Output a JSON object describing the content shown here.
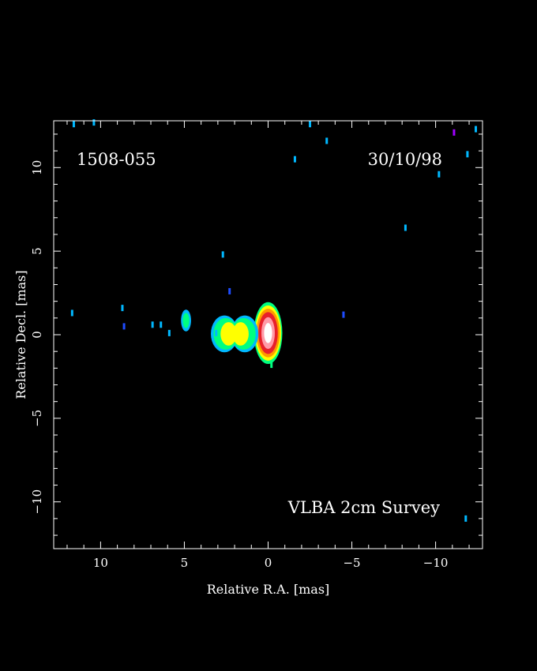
{
  "chart_data": {
    "type": "heatmap",
    "source_name": "1508-055",
    "epoch": "30/10/98",
    "survey": "VLBA 2cm Survey",
    "xlabel": "Relative R.A. [mas]",
    "ylabel": "Relative Decl. [mas]",
    "xlim": [
      12.8,
      -12.8
    ],
    "ylim": [
      -12.8,
      12.8
    ],
    "xticks": [
      {
        "value": 10,
        "label": "10"
      },
      {
        "value": 5,
        "label": "5"
      },
      {
        "value": 0,
        "label": "0"
      },
      {
        "value": -5,
        "label": "−5"
      },
      {
        "value": -10,
        "label": "−10"
      }
    ],
    "yticks": [
      {
        "value": 10,
        "label": "10"
      },
      {
        "value": 5,
        "label": "5"
      },
      {
        "value": 0,
        "label": "0"
      },
      {
        "value": -5,
        "label": "−5"
      },
      {
        "value": -10,
        "label": "−10"
      }
    ],
    "minor_tick_step": 1,
    "colors": {
      "white": "#ffffff",
      "pink": "#ff9aa8",
      "red": "#e8202a",
      "orange": "#ff9a00",
      "yellow": "#ffff00",
      "green": "#00ff80",
      "cyan": "#00b8ff",
      "blue": "#1e4cff",
      "purple": "#a000ff"
    },
    "components": [
      {
        "name": "core",
        "x": 0.0,
        "y": 0.1,
        "dx": 0.9,
        "dy": 2.0,
        "layers": [
          {
            "color": "green",
            "rx": 0.85,
            "ry": 1.85
          },
          {
            "color": "yellow",
            "rx": 0.78,
            "ry": 1.65
          },
          {
            "color": "orange",
            "rx": 0.7,
            "ry": 1.45
          },
          {
            "color": "red",
            "rx": 0.58,
            "ry": 1.25
          },
          {
            "color": "pink",
            "rx": 0.4,
            "ry": 0.95
          },
          {
            "color": "white",
            "rx": 0.24,
            "ry": 0.6
          }
        ]
      },
      {
        "name": "jet-knot-1",
        "x": 2.0,
        "y": 0.05,
        "dx": 1.3,
        "dy": 1.2,
        "layers": [
          {
            "color": "cyan",
            "rx": 1.35,
            "ry": 1.1
          },
          {
            "color": "green",
            "rx": 1.2,
            "ry": 0.95
          },
          {
            "color": "yellow",
            "rx": 0.8,
            "ry": 0.7
          }
        ]
      },
      {
        "name": "jet-knot-2",
        "x": 4.9,
        "y": 0.85,
        "dx": 0.5,
        "dy": 0.9,
        "layers": [
          {
            "color": "cyan",
            "rx": 0.3,
            "ry": 0.65
          },
          {
            "color": "green",
            "rx": 0.2,
            "ry": 0.45
          }
        ]
      }
    ],
    "specks": [
      {
        "x": 11.7,
        "y": 1.3,
        "color": "cyan"
      },
      {
        "x": 8.7,
        "y": 1.6,
        "color": "cyan"
      },
      {
        "x": 8.6,
        "y": 0.5,
        "color": "blue"
      },
      {
        "x": 6.9,
        "y": 0.6,
        "color": "cyan"
      },
      {
        "x": 6.4,
        "y": 0.6,
        "color": "cyan"
      },
      {
        "x": 5.9,
        "y": 0.1,
        "color": "cyan"
      },
      {
        "x": 3.1,
        "y": 0.1,
        "color": "cyan"
      },
      {
        "x": 2.7,
        "y": 4.8,
        "color": "cyan"
      },
      {
        "x": 2.3,
        "y": 2.6,
        "color": "blue"
      },
      {
        "x": -0.2,
        "y": -1.8,
        "color": "green"
      },
      {
        "x": -1.6,
        "y": 10.5,
        "color": "cyan"
      },
      {
        "x": -3.5,
        "y": 11.6,
        "color": "cyan"
      },
      {
        "x": -2.5,
        "y": 12.6,
        "color": "cyan"
      },
      {
        "x": -4.5,
        "y": 1.2,
        "color": "blue"
      },
      {
        "x": -8.2,
        "y": 6.4,
        "color": "cyan"
      },
      {
        "x": -10.2,
        "y": 9.6,
        "color": "cyan"
      },
      {
        "x": -11.1,
        "y": 12.1,
        "color": "purple"
      },
      {
        "x": -11.9,
        "y": 10.8,
        "color": "cyan"
      },
      {
        "x": -12.4,
        "y": 12.3,
        "color": "cyan"
      },
      {
        "x": -11.8,
        "y": -11.0,
        "color": "cyan"
      },
      {
        "x": 11.6,
        "y": 12.6,
        "color": "cyan"
      },
      {
        "x": 10.4,
        "y": 12.7,
        "color": "cyan"
      }
    ]
  }
}
